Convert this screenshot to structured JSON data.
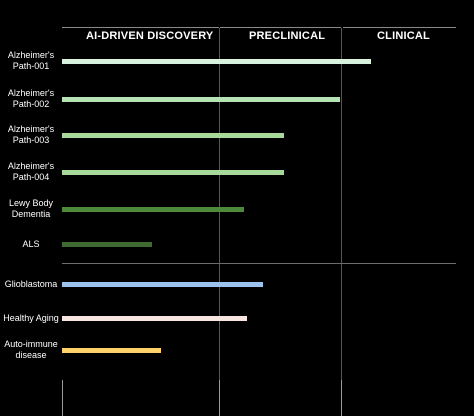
{
  "phases": {
    "discovery": "AI-DRIVEN DISCOVERY",
    "preclinical": "PRECLINICAL",
    "clinical": "CLINICAL"
  },
  "programs": [
    {
      "label": "Alzheimer's Path-001",
      "line1": "Alzheimer's",
      "line2": "Path-001",
      "progress": 1.0,
      "color": "#d8f2df"
    },
    {
      "label": "Alzheimer's Path-002",
      "line1": "Alzheimer's",
      "line2": "Path-002",
      "progress": 0.9,
      "color": "#b5e3b3"
    },
    {
      "label": "Alzheimer's Path-003",
      "line1": "Alzheimer's",
      "line2": "Path-003",
      "progress": 0.72,
      "color": "#a6d99a"
    },
    {
      "label": "Alzheimer's Path-004",
      "line1": "Alzheimer's",
      "line2": "Path-004",
      "progress": 0.72,
      "color": "#a6d99a"
    },
    {
      "label": "Lewy Body Dementia",
      "line1": "Lewy Body",
      "line2": "Dementia",
      "progress": 0.59,
      "color": "#4e8a3c"
    },
    {
      "label": "ALS",
      "line1": "ALS",
      "line2": "",
      "progress": 0.29,
      "color": "#3f6b33"
    },
    {
      "label": "Glioblastoma",
      "line1": "Glioblastoma",
      "line2": "",
      "progress": 0.65,
      "color": "#9cc3ee"
    },
    {
      "label": "Healthy Aging",
      "line1": "Healthy Aging",
      "line2": "",
      "progress": 0.6,
      "color": "#f6e6df"
    },
    {
      "label": "Auto-immune disease",
      "line1": "Auto-immune",
      "line2": "disease",
      "progress": 0.32,
      "color": "#ffd26a"
    }
  ]
}
